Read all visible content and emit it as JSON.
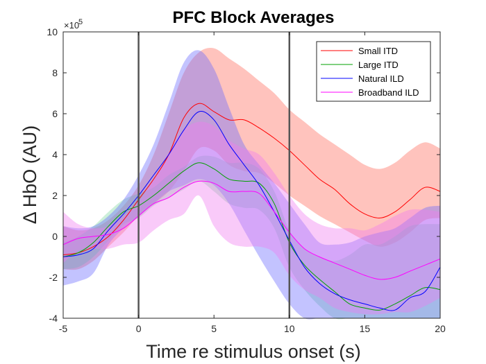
{
  "chart_data": {
    "type": "line",
    "title": "PFC Block Averages",
    "xlabel": "Time re stimulus onset (s)",
    "ylabel": "Δ HbO (AU)",
    "y_exponent_prefix": "×10",
    "y_exponent_power": "5",
    "xlim": [
      -5,
      20
    ],
    "ylim": [
      -4,
      10
    ],
    "xticks": [
      -5,
      0,
      5,
      10,
      15,
      20
    ],
    "yticks": [
      -4,
      -2,
      0,
      2,
      4,
      6,
      8,
      10
    ],
    "xtick_labels": [
      "-5",
      "0",
      "5",
      "10",
      "15",
      "20"
    ],
    "ytick_labels": [
      "-4",
      "-2",
      "0",
      "2",
      "4",
      "6",
      "8",
      "10"
    ],
    "grid": false,
    "legend_position": "top-right",
    "vlines": [
      0,
      10
    ],
    "series": [
      {
        "name": "Small ITD",
        "color": "#ff0000",
        "fill": "#ff6a5a",
        "x": [
          -5,
          -4,
          -3,
          -2,
          -1,
          0,
          1,
          2,
          3,
          4,
          5,
          6,
          7,
          8,
          9,
          10,
          11,
          12,
          13,
          14,
          15,
          16,
          17,
          18,
          19,
          20
        ],
        "mean": [
          -0.9,
          -0.8,
          -0.5,
          0.0,
          0.8,
          1.8,
          2.8,
          4.0,
          5.8,
          6.5,
          6.1,
          5.7,
          5.7,
          5.3,
          4.8,
          4.2,
          3.5,
          2.8,
          2.3,
          1.6,
          1.1,
          0.9,
          1.2,
          1.8,
          2.4,
          2.2
        ],
        "upper": [
          0.5,
          0.3,
          0.4,
          0.8,
          1.5,
          2.5,
          4.0,
          6.0,
          8.0,
          9.0,
          9.2,
          8.7,
          8.2,
          7.6,
          7.0,
          6.2,
          5.6,
          5.0,
          4.5,
          4.0,
          3.5,
          3.3,
          3.6,
          4.2,
          4.6,
          4.3
        ],
        "lower": [
          -1.6,
          -1.6,
          -1.2,
          -0.5,
          0.2,
          1.0,
          1.6,
          2.2,
          3.2,
          4.3,
          4.2,
          3.5,
          3.2,
          3.1,
          2.6,
          2.0,
          1.5,
          1.0,
          0.6,
          0.2,
          -0.2,
          -0.5,
          -0.3,
          0.2,
          0.8,
          0.9
        ]
      },
      {
        "name": "Large ITD",
        "color": "#00a000",
        "fill": "#7fd6a0",
        "x": [
          -5,
          -4,
          -3,
          -2,
          -1,
          0,
          1,
          2,
          3,
          4,
          5,
          6,
          7,
          8,
          9,
          10,
          11,
          12,
          13,
          14,
          15,
          16,
          17,
          18,
          19,
          20
        ],
        "mean": [
          -1.0,
          -0.8,
          -0.3,
          0.5,
          1.2,
          1.5,
          2.0,
          2.6,
          3.2,
          3.6,
          3.3,
          2.8,
          2.7,
          2.6,
          1.6,
          -0.3,
          -1.4,
          -2.1,
          -2.7,
          -3.3,
          -3.5,
          -3.6,
          -3.3,
          -2.9,
          -2.5,
          -2.6
        ],
        "upper": [
          -0.3,
          0.0,
          0.5,
          1.2,
          1.8,
          2.1,
          2.4,
          3.0,
          3.4,
          3.9,
          3.9,
          3.6,
          3.6,
          3.3,
          2.2,
          0.3,
          -0.6,
          -1.0,
          -1.2,
          -0.9,
          -0.4,
          -0.4,
          0.0,
          0.5,
          0.6,
          0.6
        ],
        "lower": [
          -1.6,
          -1.5,
          -1.0,
          -0.2,
          0.6,
          0.9,
          1.5,
          1.9,
          2.3,
          2.7,
          2.2,
          1.6,
          1.4,
          1.3,
          0.4,
          -1.5,
          -2.6,
          -3.4,
          -4.0,
          -4.5,
          -4.5,
          -4.5,
          -4.4,
          -4.2,
          -4.2,
          -4.3
        ]
      },
      {
        "name": "Natural ILD",
        "color": "#0000ff",
        "fill": "#6a6aff",
        "x": [
          -5,
          -4,
          -3,
          -2,
          -1,
          0,
          1,
          2,
          3,
          4,
          5,
          6,
          7,
          8,
          9,
          10,
          11,
          12,
          13,
          14,
          15,
          16,
          17,
          18,
          19,
          20
        ],
        "mean": [
          -1.0,
          -0.9,
          -0.6,
          0.3,
          1.1,
          2.0,
          3.0,
          4.0,
          5.2,
          6.1,
          5.7,
          4.5,
          3.5,
          2.5,
          1.2,
          -0.2,
          -1.5,
          -2.3,
          -2.8,
          -3.1,
          -3.3,
          -3.5,
          -3.6,
          -3.0,
          -2.7,
          -1.5
        ],
        "upper": [
          0.5,
          0.4,
          0.5,
          1.0,
          1.8,
          3.0,
          4.5,
          6.5,
          8.5,
          9.1,
          8.2,
          6.3,
          4.5,
          3.5,
          2.6,
          1.6,
          0.6,
          -0.3,
          -0.4,
          -0.3,
          0.0,
          0.2,
          0.4,
          0.9,
          1.4,
          1.5
        ],
        "lower": [
          -2.4,
          -2.2,
          -1.8,
          -0.4,
          0.4,
          1.0,
          1.6,
          2.2,
          2.5,
          2.8,
          2.5,
          1.6,
          0.3,
          -1.0,
          -2.2,
          -3.3,
          -4.5,
          -4.8,
          -4.8,
          -4.8,
          -4.8,
          -4.8,
          -4.8,
          -4.6,
          -4.6,
          -4.5
        ]
      },
      {
        "name": "Broadband ILD",
        "color": "#ff00ff",
        "fill": "#f07af0",
        "x": [
          -5,
          -4,
          -3,
          -2,
          -1,
          0,
          1,
          2,
          3,
          4,
          5,
          6,
          7,
          8,
          9,
          10,
          11,
          12,
          13,
          14,
          15,
          16,
          17,
          18,
          19,
          20
        ],
        "mean": [
          -0.4,
          -0.1,
          0.0,
          0.1,
          0.4,
          1.0,
          1.6,
          1.9,
          2.4,
          2.7,
          2.6,
          2.2,
          2.2,
          2.1,
          1.2,
          0.2,
          -0.6,
          -1.0,
          -1.3,
          -1.6,
          -1.9,
          -2.1,
          -2.0,
          -1.7,
          -1.4,
          -1.1
        ],
        "upper": [
          1.2,
          0.6,
          0.4,
          0.5,
          1.0,
          1.7,
          2.8,
          4.1,
          5.2,
          5.6,
          5.4,
          4.7,
          4.3,
          4.0,
          3.1,
          2.0,
          1.1,
          0.6,
          0.4,
          0.4,
          0.3,
          0.6,
          1.0,
          1.3,
          1.3,
          1.2
        ],
        "lower": [
          -1.3,
          -0.7,
          -0.6,
          -0.6,
          -0.4,
          -0.3,
          0.3,
          0.8,
          1.1,
          2.0,
          0.5,
          -0.3,
          -0.5,
          -0.5,
          -0.8,
          -1.9,
          -2.6,
          -3.0,
          -3.5,
          -3.7,
          -3.8,
          -3.8,
          -3.7,
          -3.7,
          -3.4,
          -3.0
        ]
      }
    ]
  }
}
